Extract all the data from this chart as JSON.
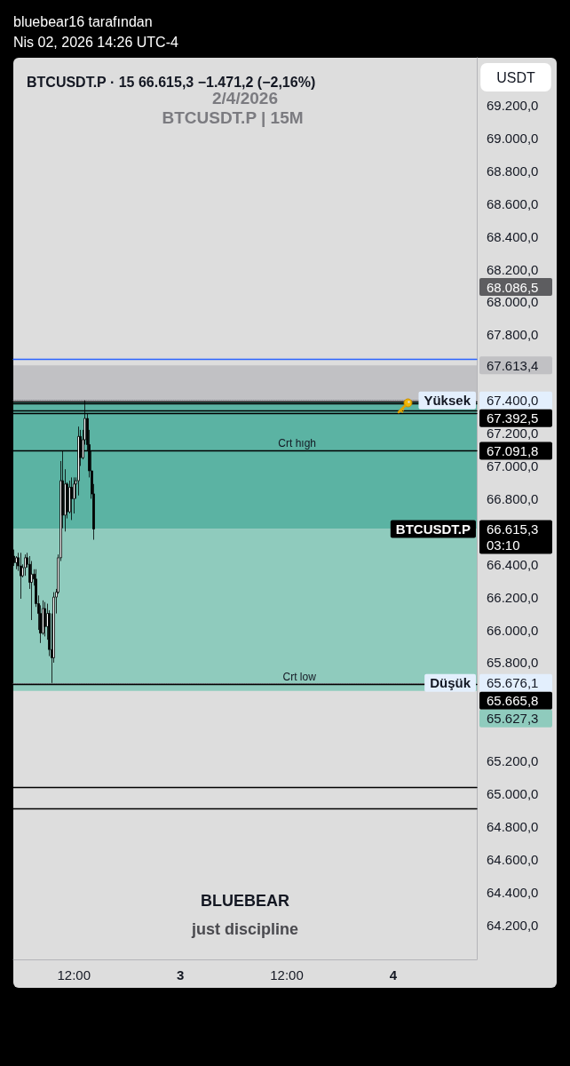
{
  "chart_data": {
    "type": "candlestick",
    "title": "BTCUSDT.P · 15 66.615,3 −1.471,2 (−2,16%)",
    "ylabel": "USDT",
    "color": "#000000",
    "x": [
      "2026-04-02T05:15",
      "2026-04-02T05:30",
      "2026-04-02T05:45",
      "2026-04-02T06:00",
      "2026-04-02T06:15",
      "2026-04-02T06:30",
      "2026-04-02T06:45",
      "2026-04-02T07:00",
      "2026-04-02T07:15",
      "2026-04-02T07:30",
      "2026-04-02T07:45",
      "2026-04-02T08:00",
      "2026-04-02T08:15",
      "2026-04-02T08:30",
      "2026-04-02T08:45",
      "2026-04-02T09:00",
      "2026-04-02T09:15",
      "2026-04-02T09:30",
      "2026-04-02T09:45",
      "2026-04-02T10:00",
      "2026-04-02T10:15",
      "2026-04-02T10:30",
      "2026-04-02T10:45",
      "2026-04-02T11:00",
      "2026-04-02T11:15",
      "2026-04-02T11:30",
      "2026-04-02T11:45",
      "2026-04-02T12:00",
      "2026-04-02T12:15",
      "2026-04-02T12:30",
      "2026-04-02T12:45",
      "2026-04-02T13:00",
      "2026-04-02T13:15",
      "2026-04-02T13:30",
      "2026-04-02T13:45",
      "2026-04-02T14:00",
      "2026-04-02T14:15"
    ],
    "ohlc": [
      [
        66450,
        66490,
        66390,
        66410
      ],
      [
        66410,
        66450,
        66370,
        66440
      ],
      [
        66440,
        66470,
        66360,
        66390
      ],
      [
        66390,
        66470,
        66190,
        66330
      ],
      [
        66330,
        66400,
        66320,
        66380
      ],
      [
        66380,
        66460,
        66330,
        66440
      ],
      [
        66440,
        66470,
        66380,
        66400
      ],
      [
        66400,
        66450,
        66250,
        66290
      ],
      [
        66290,
        66420,
        66060,
        66340
      ],
      [
        66340,
        66370,
        66270,
        66310
      ],
      [
        66310,
        66370,
        66140,
        66160
      ],
      [
        66160,
        66210,
        66000,
        66100
      ],
      [
        66100,
        66150,
        65920,
        65980
      ],
      [
        65980,
        66180,
        65970,
        66130
      ],
      [
        66130,
        66170,
        65960,
        66020
      ],
      [
        66020,
        66160,
        65940,
        66100
      ],
      [
        66100,
        66120,
        65840,
        65880
      ],
      [
        65880,
        66100,
        65676.1,
        65830
      ],
      [
        65830,
        66230,
        65800,
        66200
      ],
      [
        66200,
        66250,
        66100,
        66230
      ],
      [
        66230,
        66460,
        66220,
        66440
      ],
      [
        66440,
        67030,
        66420,
        66910
      ],
      [
        66910,
        67090,
        66620,
        66700
      ],
      [
        66700,
        66980,
        66600,
        66890
      ],
      [
        66890,
        66900,
        66680,
        66720
      ],
      [
        66720,
        66910,
        66710,
        66870
      ],
      [
        66870,
        66930,
        66670,
        66800
      ],
      [
        66800,
        66930,
        66710,
        66890
      ],
      [
        66890,
        66930,
        66800,
        66910
      ],
      [
        66910,
        67240,
        66820,
        67180
      ],
      [
        67180,
        67220,
        67000,
        67050
      ],
      [
        67050,
        67220,
        67040,
        67160
      ],
      [
        67160,
        67400,
        67130,
        67290
      ],
      [
        67290,
        67320,
        67090,
        67130
      ],
      [
        67130,
        67220,
        66930,
        66970
      ],
      [
        66970,
        67090,
        66800,
        66830
      ],
      [
        66830,
        66890,
        66550,
        66615.3
      ]
    ],
    "xlim": [
      "2026-04-02T05:10",
      "2026-04-04T09:25"
    ],
    "xticks": [
      {
        "value": "2026-04-02T12:00",
        "label": "12:00"
      },
      {
        "value": "2026-04-03T00:00",
        "label": "3"
      },
      {
        "value": "2026-04-03T12:00",
        "label": "12:00"
      },
      {
        "value": "2026-04-04T00:00",
        "label": "4"
      }
    ],
    "ylim": [
      63990,
      69490
    ],
    "yticks": [
      {
        "value": 64200,
        "label": "64.200,0"
      },
      {
        "value": 64400,
        "label": "64.400,0"
      },
      {
        "value": 64600,
        "label": "64.600,0"
      },
      {
        "value": 64800,
        "label": "64.800,0"
      },
      {
        "value": 65000,
        "label": "65.000,0"
      },
      {
        "value": 65200,
        "label": "65.200,0"
      },
      {
        "value": 65800,
        "label": "65.800,0"
      },
      {
        "value": 66000,
        "label": "66.000,0"
      },
      {
        "value": 66200,
        "label": "66.200,0"
      },
      {
        "value": 66400,
        "label": "66.400,0"
      },
      {
        "value": 66800,
        "label": "66.800,0"
      },
      {
        "value": 67000,
        "label": "67.000,0"
      },
      {
        "value": 67200,
        "label": "67.200,0"
      },
      {
        "value": 67800,
        "label": "67.800,0"
      },
      {
        "value": 68000,
        "label": "68.000,0"
      },
      {
        "value": 68200,
        "label": "68.200,0"
      },
      {
        "value": 68400,
        "label": "68.400,0"
      },
      {
        "value": 68600,
        "label": "68.600,0"
      },
      {
        "value": 68800,
        "label": "68.800,0"
      },
      {
        "value": 69000,
        "label": "69.000,0"
      },
      {
        "value": 69200,
        "label": "69.200,0"
      }
    ],
    "bands": [
      {
        "axis": "y",
        "from": 67392.5,
        "to": 67613.4,
        "label": "67.613,4",
        "color": "#c1c1c4"
      },
      {
        "axis": "y",
        "from": 67392.5,
        "to": 66615.3,
        "color": "#5bb3a3"
      },
      {
        "axis": "y",
        "from": 66615.3,
        "to": 65627.3,
        "label": "65.627,3",
        "color": "#8fcbbd"
      }
    ],
    "ref_lines": [
      {
        "axis": "y",
        "value": 67650,
        "color": "#2962ff",
        "line_style": "solid"
      },
      {
        "axis": "y",
        "value": 67400,
        "label": "67.400,0",
        "color": "#8a8a90",
        "line_style": "dotted"
      },
      {
        "axis": "y",
        "value": 67392.5,
        "label": "67.392,5",
        "color": "#000000",
        "line_style": "solid"
      },
      {
        "axis": "y",
        "value": 67380,
        "color": "#000000",
        "line_style": "solid"
      },
      {
        "axis": "y",
        "value": 67340,
        "color": "#000000",
        "line_style": "solid"
      },
      {
        "axis": "y",
        "value": 67320,
        "color": "#000000",
        "line_style": "solid"
      },
      {
        "axis": "y",
        "value": 67091.8,
        "label": "67.091,8",
        "color": "#000000",
        "line_style": "solid"
      },
      {
        "axis": "y",
        "value": 65676.1,
        "label": "65.676,1",
        "color": "#8a8a90",
        "line_style": "dotted"
      },
      {
        "axis": "y",
        "value": 65665.8,
        "label": "65.665,8",
        "color": "#000000",
        "line_style": "solid"
      },
      {
        "axis": "y",
        "value": 65040,
        "color": "#000000",
        "line_style": "solid"
      },
      {
        "axis": "y",
        "value": 64910,
        "color": "#000000",
        "line_style": "solid"
      }
    ],
    "annotations": [
      "bluebear16 tarafından",
      "Nis 02, 2026 14:26 UTC-4",
      "2/4/2026",
      "BTCUSDT.P | 15M",
      "BLUEBEAR",
      "just discipline",
      "66.615,3",
      "03:10",
      "68.086,5",
      {
        "text": "Yüksek",
        "y": 67400
      },
      {
        "text": "BTCUSDT.P",
        "y": 66615.3
      },
      {
        "text": "Düşük",
        "y": 65676.1
      },
      {
        "text": "Crt hıgh",
        "x": "2026-04-03T13:10",
        "y": 67091.8
      },
      {
        "text": "Crt low",
        "x": "2026-04-03T13:25",
        "y": 65665.8
      }
    ]
  }
}
